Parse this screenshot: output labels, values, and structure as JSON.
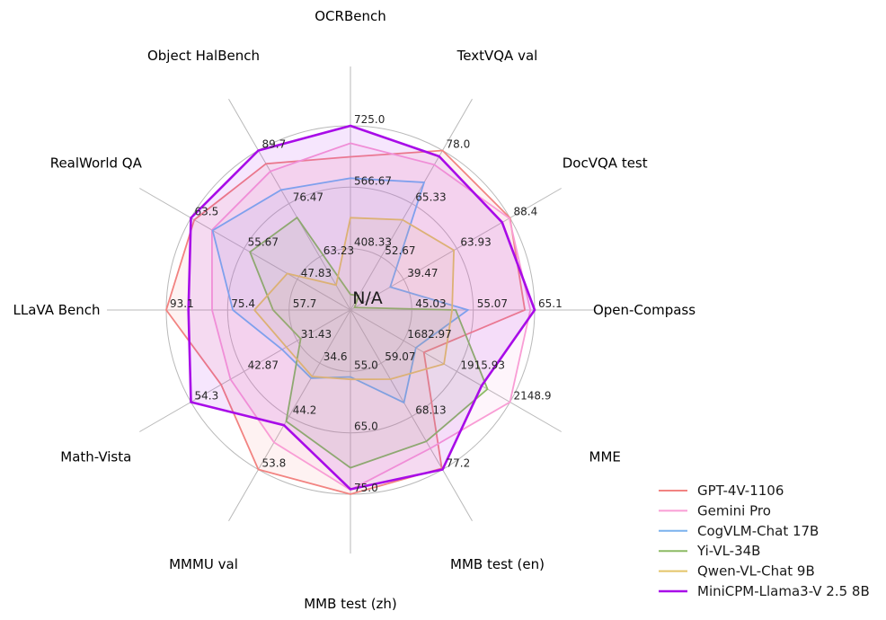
{
  "chart_data": {
    "type": "radar",
    "center_label": "N/A",
    "grid_color": "#b9b9b9",
    "legend_position": "lower right",
    "highlight_series": "MiniCPM-Llama3-V 2.5 8B",
    "axes": [
      {
        "label": "OCRBench",
        "center": 250,
        "max": 725,
        "ticks": [
          "408.33",
          "566.67",
          "725.0"
        ]
      },
      {
        "label": "TextVQA val",
        "center": 40,
        "max": 78,
        "ticks": [
          "52.67",
          "65.33",
          "78.0"
        ]
      },
      {
        "label": "DocVQA test",
        "center": 15,
        "max": 88.4,
        "ticks": [
          "39.47",
          "63.93",
          "88.4"
        ]
      },
      {
        "label": "Open-Compass",
        "center": 35,
        "max": 65.1,
        "ticks": [
          "45.03",
          "55.07",
          "65.1"
        ]
      },
      {
        "label": "MME",
        "center": 1450,
        "max": 2148.9,
        "ticks": [
          "1682.97",
          "1915.93",
          "2148.9"
        ]
      },
      {
        "label": "MMB test (en)",
        "center": 50,
        "max": 77.2,
        "ticks": [
          "59.07",
          "68.13",
          "77.2"
        ]
      },
      {
        "label": "MMB test (zh)",
        "center": 45,
        "max": 75,
        "ticks": [
          "55.0",
          "65.0",
          "75.0"
        ]
      },
      {
        "label": "MMMU val",
        "center": 25,
        "max": 53.8,
        "ticks": [
          "34.6",
          "44.2",
          "53.8"
        ]
      },
      {
        "label": "Math-Vista",
        "center": 20,
        "max": 54.3,
        "ticks": [
          "31.43",
          "42.87",
          "54.3"
        ]
      },
      {
        "label": "LLaVA Bench",
        "center": 40,
        "max": 93.1,
        "ticks": [
          "57.7",
          "75.4",
          "93.1"
        ]
      },
      {
        "label": "RealWorld QA",
        "center": 40,
        "max": 63.5,
        "ticks": [
          "47.83",
          "55.67",
          "63.5"
        ]
      },
      {
        "label": "Object HalBench",
        "center": 50,
        "max": 89.7,
        "ticks": [
          "63.23",
          "76.47",
          "89.7"
        ]
      }
    ],
    "series": [
      {
        "name": "GPT-4V-1106",
        "color": "#f28381",
        "values": [
          645,
          78.0,
          88.4,
          63.5,
          1771.5,
          77.0,
          75.0,
          53.8,
          47.8,
          93.1,
          63.0,
          86.4
        ]
      },
      {
        "name": "Gemini Pro",
        "color": "#f99dd5",
        "values": [
          680,
          74.6,
          88.1,
          64.4,
          2148.9,
          73.6,
          74.3,
          48.9,
          45.8,
          79.9,
          60.4,
          84.5
        ]
      },
      {
        "name": "CogVLM-Chat 17B",
        "color": "#7bb2ee",
        "values": [
          590,
          70.4,
          33.3,
          54.2,
          1736.6,
          65.8,
          55.9,
          37.3,
          34.7,
          73.9,
          60.3,
          79.9
        ]
      },
      {
        "name": "Yi-VL-34B",
        "color": "#8cba64",
        "values": [
          290,
          43.4,
          16.9,
          52.2,
          2050.2,
          72.4,
          70.7,
          45.1,
          30.7,
          62.3,
          54.8,
          73.0
        ]
      },
      {
        "name": "Qwen-VL-Chat 9B",
        "color": "#e3c468",
        "values": [
          488,
          61.5,
          62.6,
          51.6,
          1860.0,
          61.8,
          56.3,
          37.0,
          33.8,
          67.7,
          49.3,
          56.2
        ]
      },
      {
        "name": "MiniCPM-Llama3-V 2.5 8B",
        "color": "#a80be8",
        "values": [
          725,
          76.6,
          84.8,
          65.1,
          2024.6,
          77.2,
          74.2,
          45.8,
          54.3,
          86.7,
          63.5,
          89.7
        ]
      }
    ]
  }
}
